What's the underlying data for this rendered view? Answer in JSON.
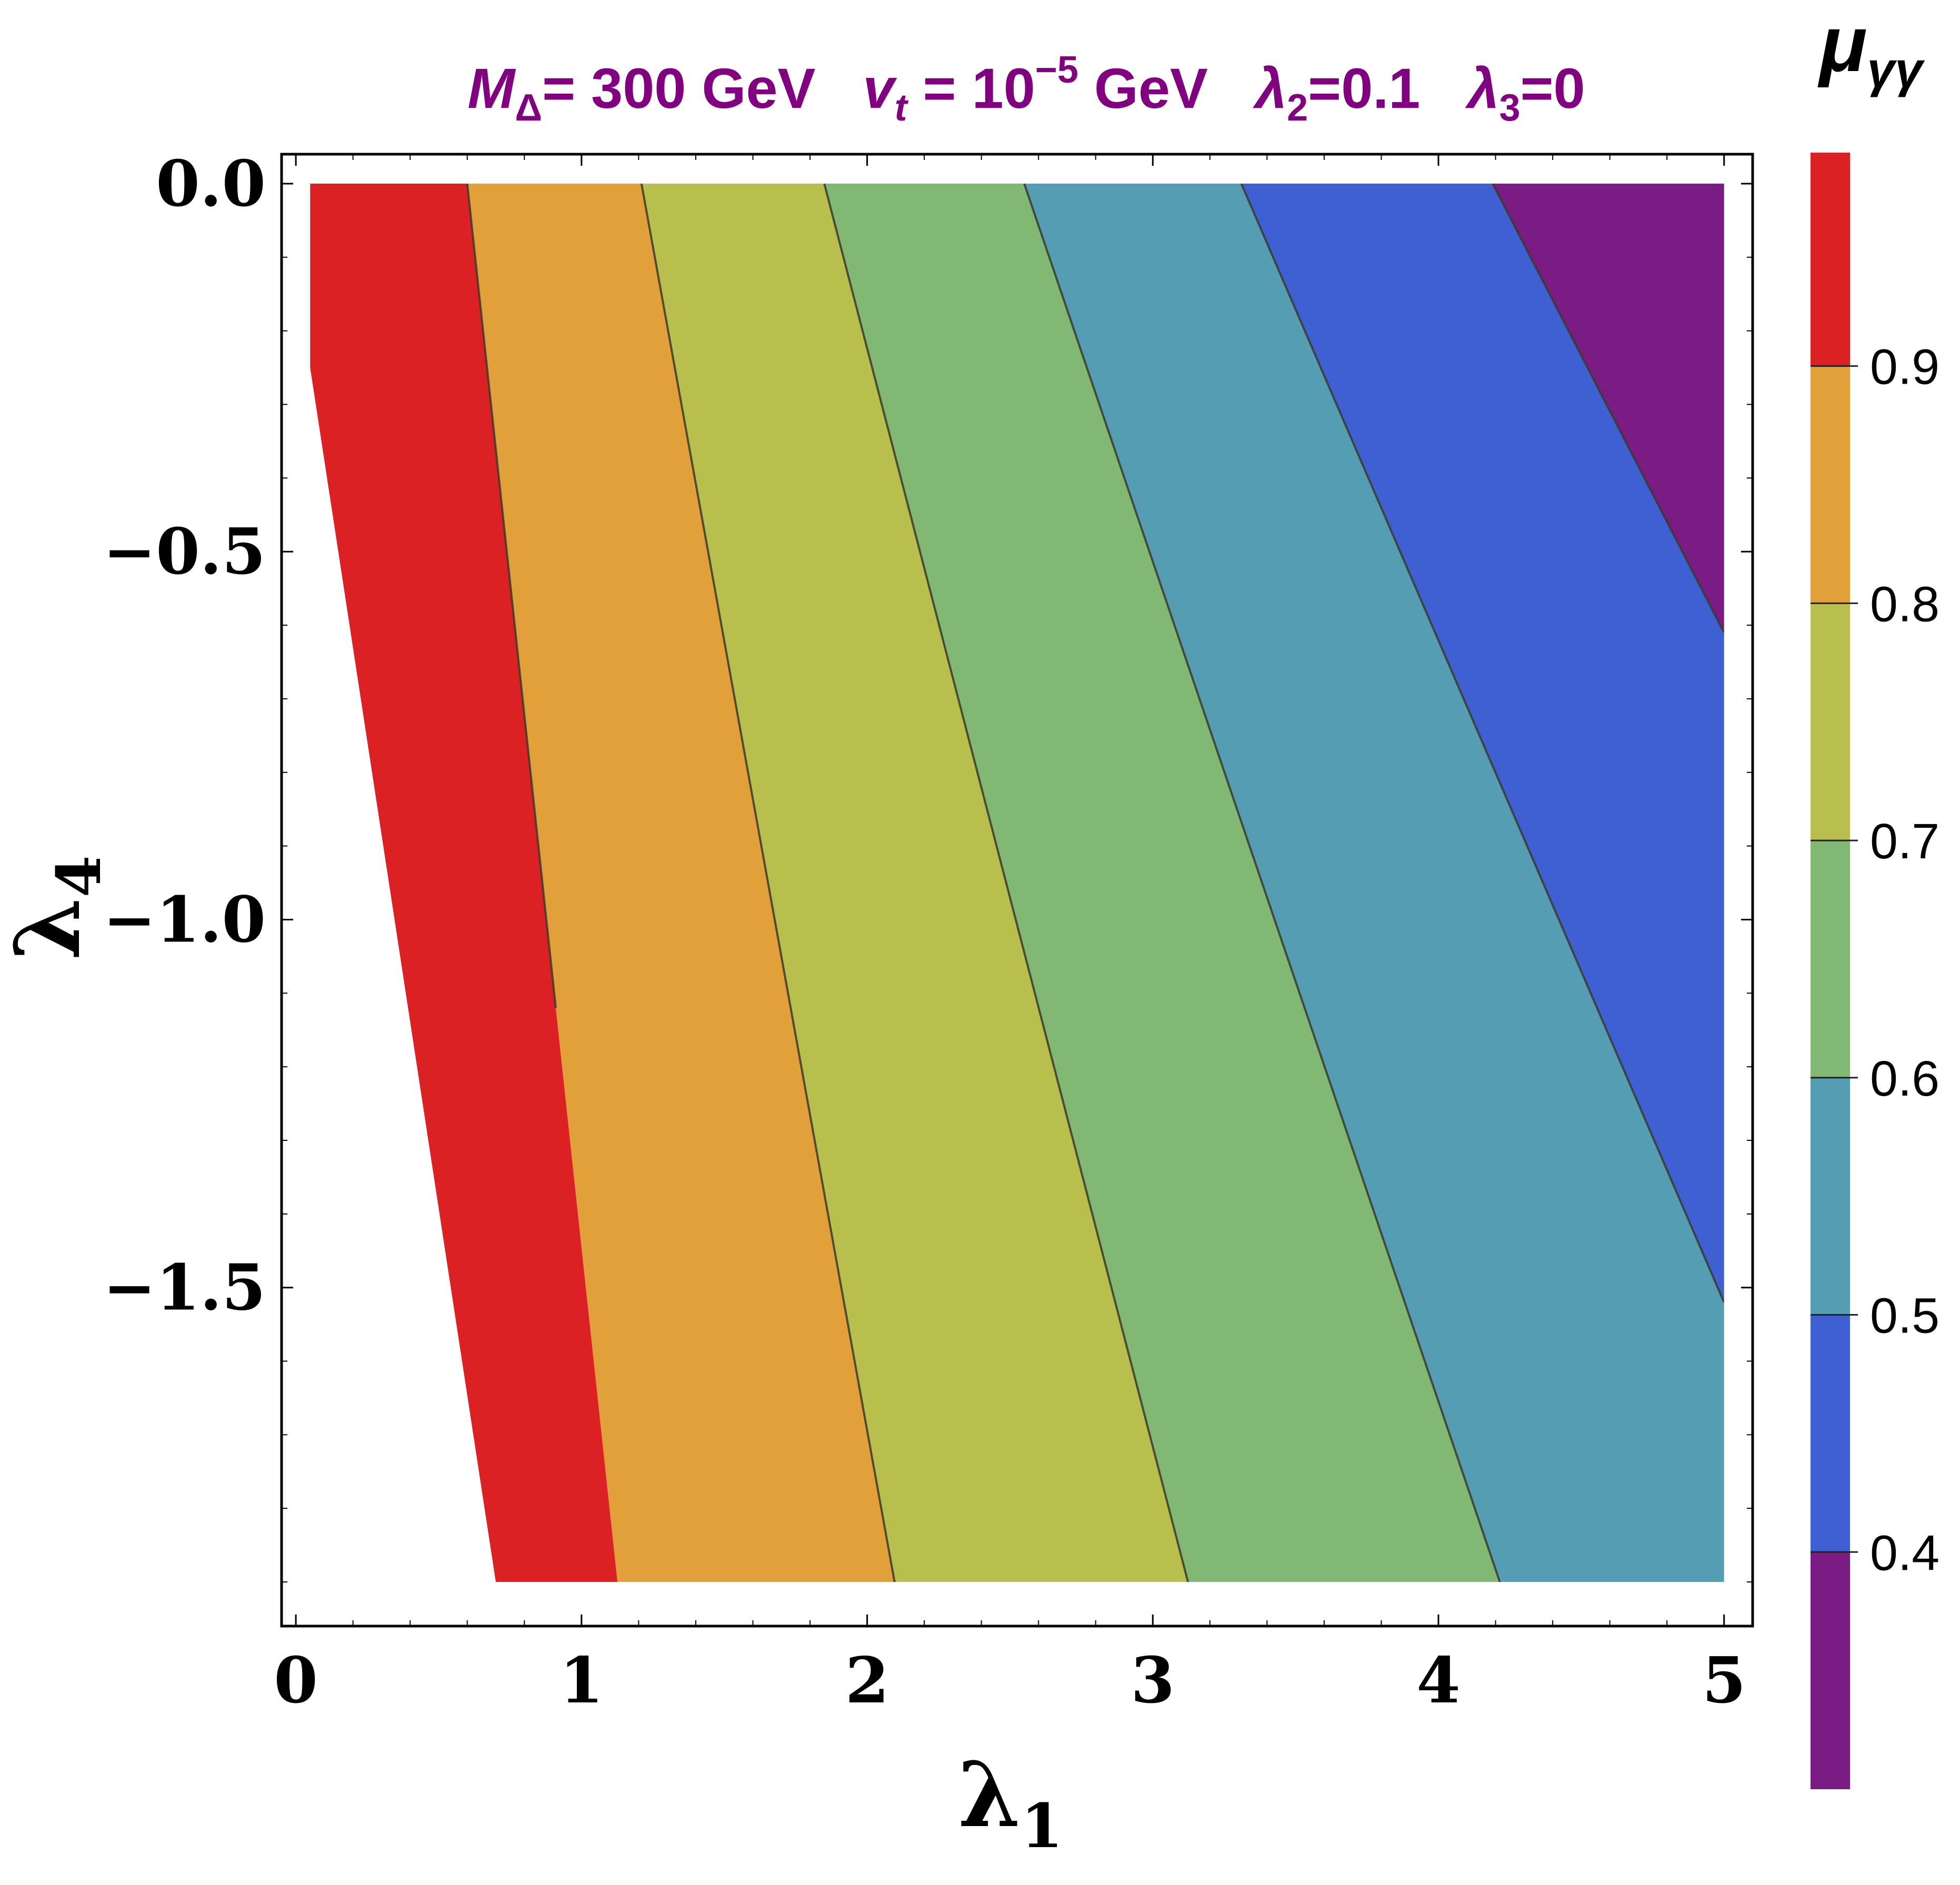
{
  "chart_data": {
    "type": "contour",
    "title_parts": {
      "m": "M",
      "m_sub": "Δ",
      "m_val": "= 300 GeV",
      "v": "v",
      "v_sub": "t",
      "v_eq": " = 10",
      "v_sup": "−5",
      "v_unit": " GeV",
      "l2": "λ",
      "l2_sub": "2",
      "l2_val": "=0.1",
      "l3": "λ",
      "l3_sub": "3",
      "l3_val": "=0"
    },
    "xlabel": "λ",
    "xlabel_sub": "1",
    "ylabel": "λ",
    "ylabel_sub": "4",
    "xlim": [
      -0.05,
      5.1
    ],
    "ylim": [
      -1.96,
      0.04
    ],
    "xticks": [
      {
        "value": 0,
        "label": "0"
      },
      {
        "value": 1,
        "label": "1"
      },
      {
        "value": 2,
        "label": "2"
      },
      {
        "value": 3,
        "label": "3"
      },
      {
        "value": 4,
        "label": "4"
      },
      {
        "value": 5,
        "label": "5"
      }
    ],
    "yticks": [
      {
        "value": 0.0,
        "label": "0.0"
      },
      {
        "value": -0.5,
        "label": "−0.5"
      },
      {
        "value": -1.0,
        "label": "−1.0"
      },
      {
        "value": -1.5,
        "label": "−1.5"
      }
    ],
    "region_boundary": [
      [
        0.05,
        0.0
      ],
      [
        0.2,
        0.0
      ],
      [
        5.0,
        0.0
      ],
      [
        5.0,
        -1.9
      ],
      [
        0.7,
        -1.9
      ],
      [
        0.05,
        -0.25
      ]
    ],
    "contour_lines": [
      {
        "level": 0.9,
        "points": [
          [
            0.6,
            0.0
          ],
          [
            0.91,
            -1.12
          ]
        ]
      },
      {
        "level": 0.8,
        "points": [
          [
            1.21,
            0.0
          ],
          [
            2.11,
            -1.93
          ]
        ]
      },
      {
        "level": 0.7,
        "points": [
          [
            1.85,
            0.0
          ],
          [
            3.15,
            -1.94
          ]
        ]
      },
      {
        "level": 0.6,
        "points": [
          [
            2.55,
            0.0
          ],
          [
            4.25,
            -1.94
          ]
        ]
      },
      {
        "level": 0.5,
        "points": [
          [
            3.31,
            0.0
          ],
          [
            5.0,
            -1.52
          ]
        ]
      },
      {
        "level": 0.4,
        "points": [
          [
            4.19,
            0.0
          ],
          [
            5.0,
            -0.61
          ]
        ]
      }
    ],
    "bands": [
      {
        "range": [
          0.9,
          1.0
        ],
        "color": "#dc2125"
      },
      {
        "range": [
          0.8,
          0.9
        ],
        "color": "#e2a03a"
      },
      {
        "range": [
          0.7,
          0.8
        ],
        "color": "#b8bf4d"
      },
      {
        "range": [
          0.6,
          0.7
        ],
        "color": "#81b874"
      },
      {
        "range": [
          0.5,
          0.6
        ],
        "color": "#559db2"
      },
      {
        "range": [
          0.4,
          0.5
        ],
        "color": "#3f60d2"
      },
      {
        "range": [
          0.3,
          0.4
        ],
        "color": "#7b1b84"
      }
    ],
    "colorbar": {
      "title": "μ",
      "title_sub": "γγ",
      "range": [
        0.3,
        0.99
      ],
      "ticks": [
        {
          "value": 0.4,
          "label": "0.4"
        },
        {
          "value": 0.5,
          "label": "0.5"
        },
        {
          "value": 0.6,
          "label": "0.6"
        },
        {
          "value": 0.7,
          "label": "0.7"
        },
        {
          "value": 0.8,
          "label": "0.8"
        },
        {
          "value": 0.9,
          "label": "0.9"
        }
      ]
    }
  }
}
